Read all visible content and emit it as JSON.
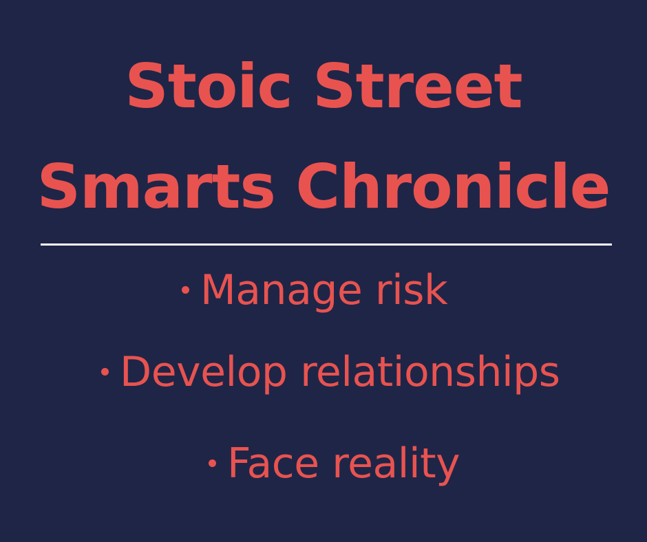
{
  "title": {
    "line1": "Stoic Street",
    "line2": "Smarts Chronicle"
  },
  "bullets": [
    "Manage risk",
    "Develop relationships",
    "Face reality"
  ],
  "colors": {
    "background": "#1f2547",
    "accent": "#e85350",
    "divider": "#ffffff"
  }
}
